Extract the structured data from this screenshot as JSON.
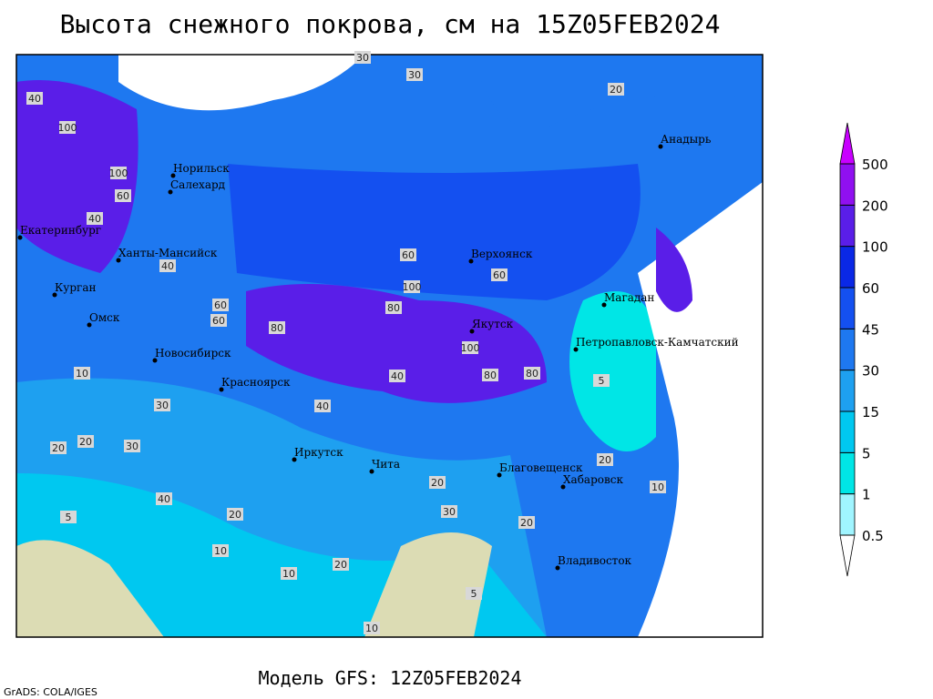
{
  "header": {
    "title": "Высота снежного покрова, см на 15Z05FEB2024",
    "subtitle": "Модель GFS: 12Z05FEB2024",
    "credit": "GrADS: COLA/IGES"
  },
  "cities": [
    "Норильск",
    "Салехард",
    "Екатеринбург",
    "Ханты-Мансийск",
    "Курган",
    "Омск",
    "Новосибирск",
    "Красноярск",
    "Иркутск",
    "Чита",
    "Верхоянск",
    "Якутск",
    "Магадан",
    "Анадырь",
    "Петропавловск-Камчатский",
    "Благовещенск",
    "Хабаровск",
    "Владивосток"
  ],
  "map_labels": [
    "30",
    "30",
    "20",
    "40",
    "100",
    "100",
    "60",
    "40",
    "40",
    "60",
    "80",
    "60",
    "100",
    "80",
    "100",
    "60",
    "80",
    "80",
    "40",
    "40",
    "30",
    "20",
    "10",
    "20",
    "30",
    "20",
    "10",
    "5",
    "10",
    "20",
    "30",
    "20",
    "10",
    "5",
    "20",
    "40",
    "60",
    "5",
    "20",
    "10"
  ],
  "legend": {
    "levels": [
      0.5,
      1,
      5,
      15,
      30,
      45,
      60,
      100,
      200,
      500
    ],
    "colors": [
      "#a0f5ff",
      "#00e6e6",
      "#00c8f0",
      "#1ea0f0",
      "#1e78f0",
      "#1450f0",
      "#0a28e6",
      "#5a1ee8",
      "#9010f0"
    ],
    "under_color": "#ffffff",
    "over_color": "#c800ff"
  }
}
